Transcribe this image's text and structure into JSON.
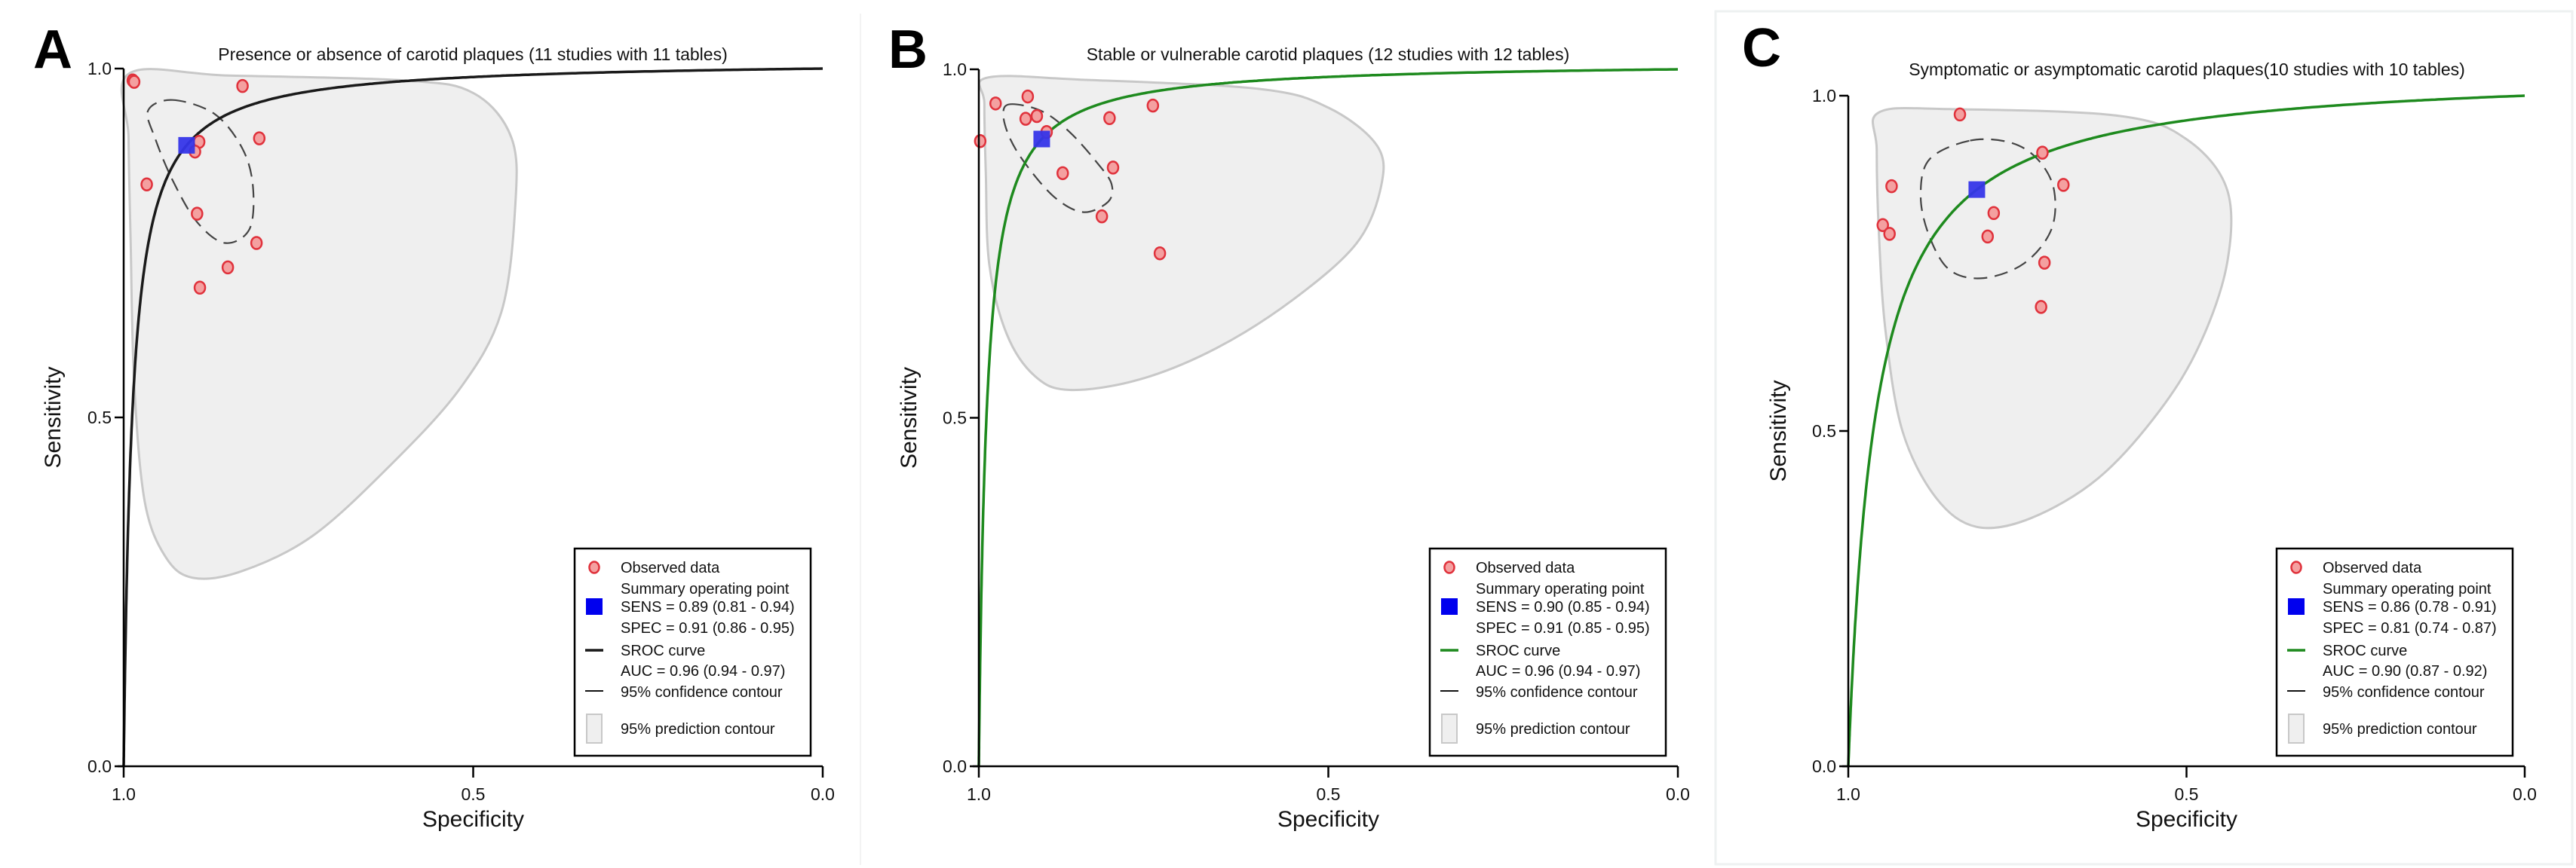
{
  "figure": {
    "panels_count": 3
  },
  "chart_data": [
    {
      "type": "scatter",
      "panel_label": "A",
      "title": "Presence or absence of carotid plaques (11 studies with 11 tables)",
      "xlabel": "Specificity",
      "ylabel": "Sensitivity",
      "xlim": [
        1.0,
        0.0
      ],
      "ylim": [
        0.0,
        1.0
      ],
      "x_ticks": [
        "1.0",
        "0.5",
        "0.0"
      ],
      "y_ticks": [
        "0.0",
        "0.5",
        "1.0"
      ],
      "sroc_color": "#1a1a1a",
      "sroc_auc": 0.96,
      "observed": [
        {
          "spec": 0.987,
          "sens": 0.983
        },
        {
          "spec": 0.985,
          "sens": 0.981
        },
        {
          "spec": 0.83,
          "sens": 0.975
        },
        {
          "spec": 0.806,
          "sens": 0.9
        },
        {
          "spec": 0.892,
          "sens": 0.895
        },
        {
          "spec": 0.898,
          "sens": 0.881
        },
        {
          "spec": 0.967,
          "sens": 0.834
        },
        {
          "spec": 0.895,
          "sens": 0.792
        },
        {
          "spec": 0.81,
          "sens": 0.75
        },
        {
          "spec": 0.851,
          "sens": 0.715
        },
        {
          "spec": 0.891,
          "sens": 0.686
        }
      ],
      "summary_point": {
        "spec": 0.91,
        "sens": 0.89
      },
      "confidence_contour": [
        [
          0.93,
          0.955
        ],
        [
          0.87,
          0.935
        ],
        [
          0.83,
          0.885
        ],
        [
          0.815,
          0.83
        ],
        [
          0.82,
          0.77
        ],
        [
          0.855,
          0.75
        ],
        [
          0.895,
          0.78
        ],
        [
          0.93,
          0.84
        ],
        [
          0.955,
          0.9
        ],
        [
          0.965,
          0.94
        ]
      ],
      "prediction_contour": [
        [
          0.992,
          0.993
        ],
        [
          0.85,
          0.99
        ],
        [
          0.6,
          0.983
        ],
        [
          0.5,
          0.965
        ],
        [
          0.445,
          0.9
        ],
        [
          0.44,
          0.8
        ],
        [
          0.46,
          0.65
        ],
        [
          0.52,
          0.54
        ],
        [
          0.62,
          0.43
        ],
        [
          0.73,
          0.33
        ],
        [
          0.83,
          0.28
        ],
        [
          0.9,
          0.27
        ],
        [
          0.94,
          0.3
        ],
        [
          0.97,
          0.38
        ],
        [
          0.985,
          0.55
        ],
        [
          0.99,
          0.75
        ],
        [
          0.993,
          0.9
        ]
      ],
      "legend": {
        "observed": "Observed data",
        "summary": "Summary operating point",
        "sens": "SENS = 0.89 (0.81 - 0.94)",
        "spec": "SPEC = 0.91 (0.86 - 0.95)",
        "sroc": "SROC curve",
        "auc": "AUC = 0.96 (0.94 - 0.97)",
        "confidence": "95% confidence contour",
        "prediction": "95% prediction contour"
      }
    },
    {
      "type": "scatter",
      "panel_label": "B",
      "title": "Stable or vulnerable carotid plaques (12 studies with 12 tables)",
      "xlabel": "Specificity",
      "ylabel": "Sensitivity",
      "xlim": [
        1.0,
        0.0
      ],
      "ylim": [
        0.0,
        1.0
      ],
      "x_ticks": [
        "1.0",
        "0.5",
        "0.0"
      ],
      "y_ticks": [
        "0.0",
        "0.5",
        "1.0"
      ],
      "sroc_color": "#1e8a1e",
      "sroc_auc": 0.96,
      "observed": [
        {
          "spec": 0.976,
          "sens": 0.951
        },
        {
          "spec": 0.93,
          "sens": 0.961
        },
        {
          "spec": 0.933,
          "sens": 0.929
        },
        {
          "spec": 0.917,
          "sens": 0.933
        },
        {
          "spec": 0.903,
          "sens": 0.91
        },
        {
          "spec": 0.998,
          "sens": 0.897
        },
        {
          "spec": 0.813,
          "sens": 0.93
        },
        {
          "spec": 0.751,
          "sens": 0.948
        },
        {
          "spec": 0.88,
          "sens": 0.851
        },
        {
          "spec": 0.808,
          "sens": 0.859
        },
        {
          "spec": 0.824,
          "sens": 0.789
        },
        {
          "spec": 0.741,
          "sens": 0.736
        }
      ],
      "summary_point": {
        "spec": 0.91,
        "sens": 0.9
      },
      "confidence_contour": [
        [
          0.955,
          0.95
        ],
        [
          0.91,
          0.94
        ],
        [
          0.87,
          0.91
        ],
        [
          0.83,
          0.865
        ],
        [
          0.81,
          0.835
        ],
        [
          0.815,
          0.81
        ],
        [
          0.85,
          0.795
        ],
        [
          0.89,
          0.815
        ],
        [
          0.93,
          0.86
        ],
        [
          0.955,
          0.9
        ],
        [
          0.965,
          0.935
        ]
      ],
      "prediction_contour": [
        [
          0.988,
          0.988
        ],
        [
          0.85,
          0.985
        ],
        [
          0.6,
          0.972
        ],
        [
          0.5,
          0.945
        ],
        [
          0.43,
          0.89
        ],
        [
          0.425,
          0.83
        ],
        [
          0.46,
          0.75
        ],
        [
          0.55,
          0.67
        ],
        [
          0.66,
          0.6
        ],
        [
          0.77,
          0.555
        ],
        [
          0.87,
          0.54
        ],
        [
          0.92,
          0.56
        ],
        [
          0.96,
          0.62
        ],
        [
          0.985,
          0.72
        ],
        [
          0.99,
          0.85
        ],
        [
          0.992,
          0.95
        ]
      ],
      "legend": {
        "observed": "Observed data",
        "summary": "Summary operating point",
        "sens": "SENS = 0.90 (0.85 - 0.94)",
        "spec": "SPEC = 0.91 (0.85 - 0.95)",
        "sroc": "SROC curve",
        "auc": "AUC = 0.96 (0.94 - 0.97)",
        "confidence": "95% confidence contour",
        "prediction": "95% prediction contour"
      }
    },
    {
      "type": "scatter",
      "panel_label": "C",
      "title": "Symptomatic or asymptomatic carotid plaques(10 studies with 10 tables)",
      "xlabel": "Specificity",
      "ylabel": "Sensitivity",
      "xlim": [
        1.0,
        0.0
      ],
      "ylim": [
        0.0,
        1.0
      ],
      "x_ticks": [
        "1.0",
        "0.5",
        "0.0"
      ],
      "y_ticks": [
        "0.0",
        "0.5",
        "1.0"
      ],
      "sroc_color": "#1e8a1e",
      "sroc_auc": 0.9,
      "observed": [
        {
          "spec": 0.835,
          "sens": 0.972
        },
        {
          "spec": 0.936,
          "sens": 0.865
        },
        {
          "spec": 0.949,
          "sens": 0.807
        },
        {
          "spec": 0.939,
          "sens": 0.794
        },
        {
          "spec": 0.713,
          "sens": 0.915
        },
        {
          "spec": 0.682,
          "sens": 0.867
        },
        {
          "spec": 0.785,
          "sens": 0.825
        },
        {
          "spec": 0.794,
          "sens": 0.79
        },
        {
          "spec": 0.71,
          "sens": 0.751
        },
        {
          "spec": 0.715,
          "sens": 0.685
        }
      ],
      "summary_point": {
        "spec": 0.81,
        "sens": 0.86
      },
      "confidence_contour": [
        [
          0.82,
          0.933
        ],
        [
          0.76,
          0.93
        ],
        [
          0.72,
          0.905
        ],
        [
          0.696,
          0.86
        ],
        [
          0.7,
          0.8
        ],
        [
          0.74,
          0.75
        ],
        [
          0.8,
          0.728
        ],
        [
          0.85,
          0.74
        ],
        [
          0.88,
          0.79
        ],
        [
          0.893,
          0.85
        ],
        [
          0.88,
          0.905
        ]
      ],
      "prediction_contour": [
        [
          0.955,
          0.975
        ],
        [
          0.85,
          0.98
        ],
        [
          0.6,
          0.97
        ],
        [
          0.5,
          0.935
        ],
        [
          0.44,
          0.86
        ],
        [
          0.44,
          0.75
        ],
        [
          0.48,
          0.63
        ],
        [
          0.54,
          0.53
        ],
        [
          0.63,
          0.43
        ],
        [
          0.73,
          0.37
        ],
        [
          0.81,
          0.357
        ],
        [
          0.87,
          0.4
        ],
        [
          0.92,
          0.5
        ],
        [
          0.945,
          0.65
        ],
        [
          0.955,
          0.8
        ],
        [
          0.958,
          0.92
        ]
      ],
      "legend": {
        "observed": "Observed data",
        "summary": "Summary operating point",
        "sens": "SENS = 0.86 (0.78 - 0.91)",
        "spec": "SPEC = 0.81 (0.74 - 0.87)",
        "sroc": "SROC curve",
        "auc": "AUC = 0.90 (0.87 - 0.92)",
        "confidence": "95% confidence contour",
        "prediction": "95% prediction contour"
      }
    }
  ],
  "colors": {
    "observed_fill": "#f4a0a0",
    "observed_stroke": "#e0323c",
    "summary": "#3535e8",
    "legend_summary": "#0000ee",
    "prediction_fill": "#efefef",
    "prediction_stroke": "#c8c8c8",
    "confidence_stroke": "#444444"
  }
}
